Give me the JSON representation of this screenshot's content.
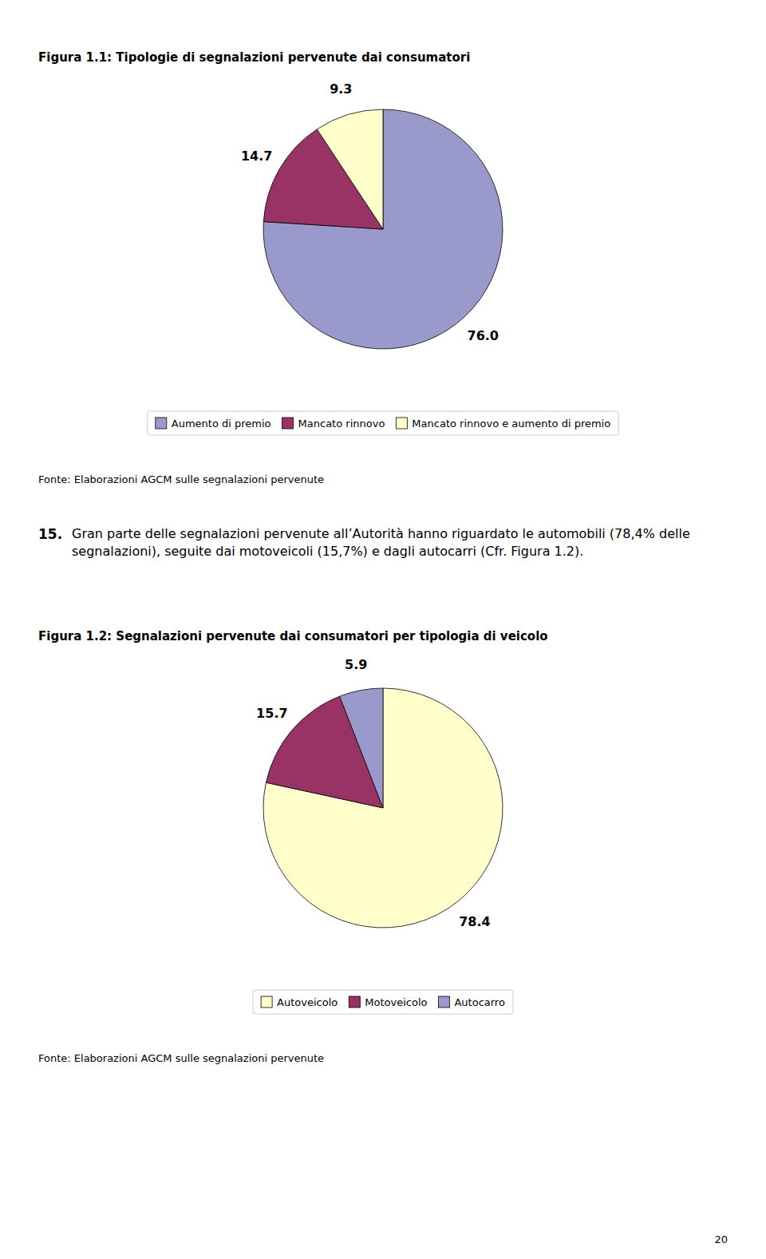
{
  "chart_data": [
    {
      "type": "pie",
      "title": "Figura 1.1: Tipologie di segnalazioni pervenute dai consumatori",
      "categories": [
        "Aumento di premio",
        "Mancato rinnovo",
        "Mancato rinnovo e aumento di premio"
      ],
      "values": [
        76.0,
        14.7,
        9.3
      ],
      "value_labels": [
        "76.0",
        "14.7",
        "9.3"
      ],
      "colors": [
        "#9999cc",
        "#993366",
        "#ffffcc"
      ],
      "data_labels": true,
      "legend": "bottom",
      "annotations": [
        "Fonte: Elaborazioni AGCM sulle segnalazioni pervenute"
      ]
    },
    {
      "type": "pie",
      "title": "Figura 1.2: Segnalazioni pervenute dai consumatori per tipologia di veicolo",
      "categories": [
        "Autoveicolo",
        "Motoveicolo",
        "Autocarro"
      ],
      "values": [
        78.4,
        15.7,
        5.9
      ],
      "value_labels": [
        "78.4",
        "15.7",
        "5.9"
      ],
      "colors": [
        "#ffffcc",
        "#993366",
        "#9999cc"
      ],
      "data_labels": true,
      "legend": "bottom",
      "annotations": [
        "Fonte: Elaborazioni AGCM sulle segnalazioni pervenute"
      ]
    }
  ],
  "paragraph_number": "15.",
  "paragraph_text": "Gran parte delle segnalazioni pervenute all’Autorità hanno riguardato le automobili (78,4% delle segnalazioni), seguite dai motoveicoli (15,7%) e dagli autocarri (Cfr. Figura 1.2).",
  "page_number": "20"
}
